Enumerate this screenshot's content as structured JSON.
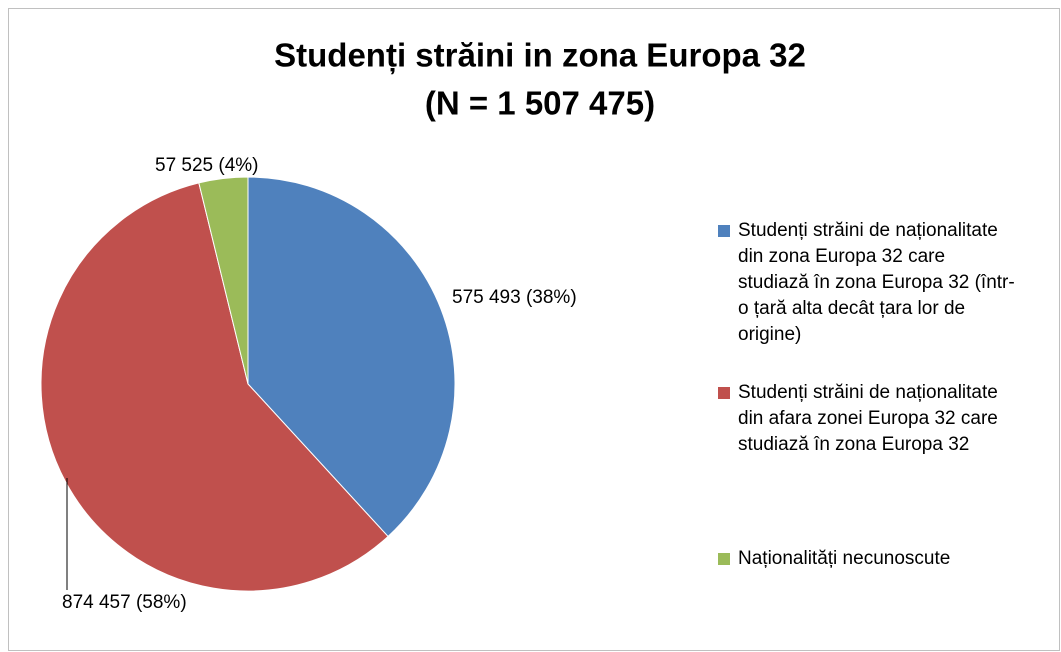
{
  "chart_data": {
    "type": "pie",
    "title": "Studenți străini in zona Europa 32",
    "subtitle": "(N = 1 507 475)",
    "series": [
      {
        "name": "Studenți străini de naționalitate  din zona Europa 32 care studiază în zona Europa 32 (într-o țară alta decât țara lor de origine)",
        "color": "#4f81bd"
      },
      {
        "name": "Studenți străini de naționalitate  din afara zonei Europa 32 care studiază în zona Europa 32",
        "color": "#c0504d"
      },
      {
        "name": "Naționalități  necunoscute",
        "color": "#9bbb59"
      }
    ],
    "values": [
      575493,
      874457,
      57525
    ],
    "value_labels": [
      "575 493 (38%)",
      "874 457 (58%)",
      "57 525 (4%)"
    ],
    "legend": "right"
  }
}
